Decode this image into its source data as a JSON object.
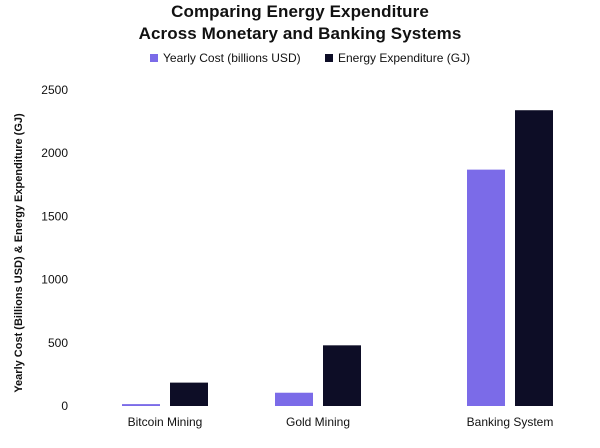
{
  "chart_data": {
    "type": "bar",
    "title_line1": "Comparing Energy Expenditure",
    "title_line2": "Across Monetary and Banking Systems",
    "xlabel": "",
    "ylabel": "Yearly Cost (Billions USD) & Energy Expenditure (GJ)",
    "categories": [
      "Bitcoin Mining",
      "Gold Mining",
      "Banking System"
    ],
    "series": [
      {
        "name": "Yearly Cost (billions USD)",
        "color": "#7b6be8",
        "values": [
          15,
          105,
          1870
        ]
      },
      {
        "name": "Energy Expenditure (GJ)",
        "color": "#0d0d26",
        "values": [
          185,
          480,
          2340
        ]
      }
    ],
    "ylim": [
      0,
      2500
    ],
    "yticks": [
      0,
      500,
      1000,
      1500,
      2000,
      2500
    ],
    "grid": false,
    "legend_position": "top-center"
  }
}
